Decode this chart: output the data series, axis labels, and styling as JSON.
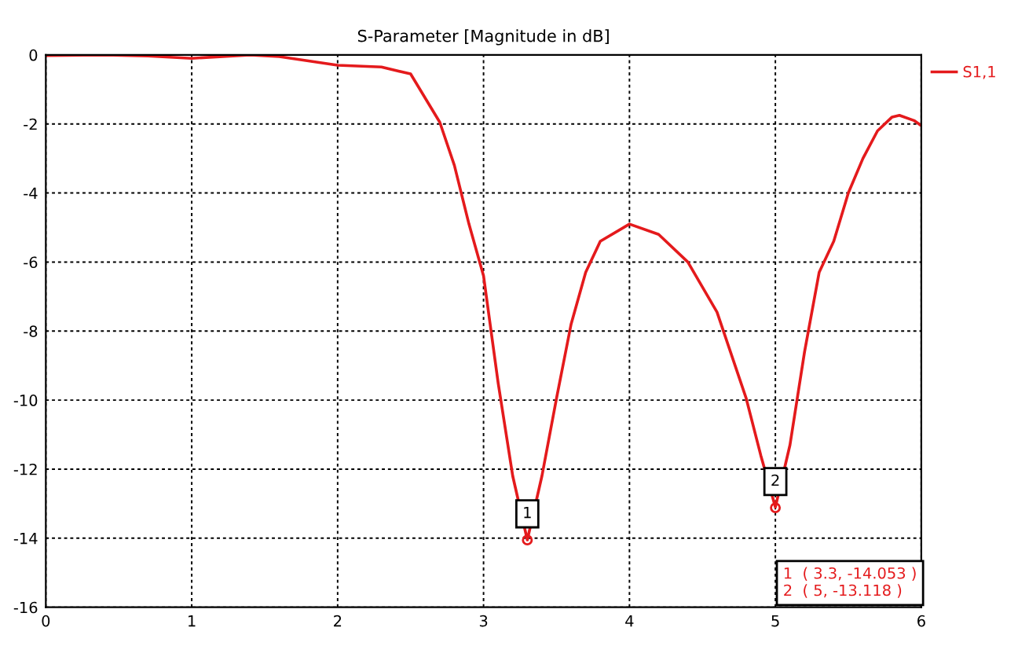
{
  "chart_data": {
    "type": "line",
    "title": "S-Parameter [Magnitude in dB]",
    "series": [
      {
        "name": "S1,1",
        "color": "#e41a1c",
        "x": [
          0,
          0.4,
          0.7,
          1.0,
          1.4,
          1.6,
          2.0,
          2.3,
          2.5,
          2.7,
          2.8,
          2.9,
          3.0,
          3.1,
          3.2,
          3.3,
          3.4,
          3.5,
          3.6,
          3.7,
          3.8,
          4.0,
          4.2,
          4.4,
          4.6,
          4.8,
          4.9,
          5.0,
          5.1,
          5.2,
          5.3,
          5.4,
          5.5,
          5.6,
          5.7,
          5.8,
          5.85,
          5.95,
          6.0
        ],
        "values": [
          -0.02,
          0.0,
          -0.03,
          -0.1,
          0.0,
          -0.05,
          -0.3,
          -0.35,
          -0.55,
          -1.95,
          -3.2,
          -4.9,
          -6.4,
          -9.5,
          -12.2,
          -14.05,
          -12.2,
          -9.95,
          -7.8,
          -6.3,
          -5.4,
          -4.9,
          -5.2,
          -6.0,
          -7.45,
          -9.95,
          -11.6,
          -13.1,
          -11.3,
          -8.6,
          -6.3,
          -5.4,
          -4.0,
          -3.0,
          -2.2,
          -1.8,
          -1.75,
          -1.9,
          -2.05
        ]
      }
    ],
    "xlim": [
      0,
      6
    ],
    "xticks": [
      0,
      1,
      2,
      3,
      4,
      5,
      6
    ],
    "ylim": [
      -16,
      0
    ],
    "yticks": [
      -16,
      -14,
      -12,
      -10,
      -8,
      -6,
      -4,
      -2,
      0
    ],
    "grid": true,
    "legend": "top right",
    "annotations": [
      {
        "text": "1",
        "x": 3.3,
        "y": -14.053
      },
      {
        "text": "2",
        "x": 5,
        "y": -13.118
      },
      "1  ( 3.3, -14.053 )",
      "2  ( 5, -13.118 )"
    ]
  }
}
